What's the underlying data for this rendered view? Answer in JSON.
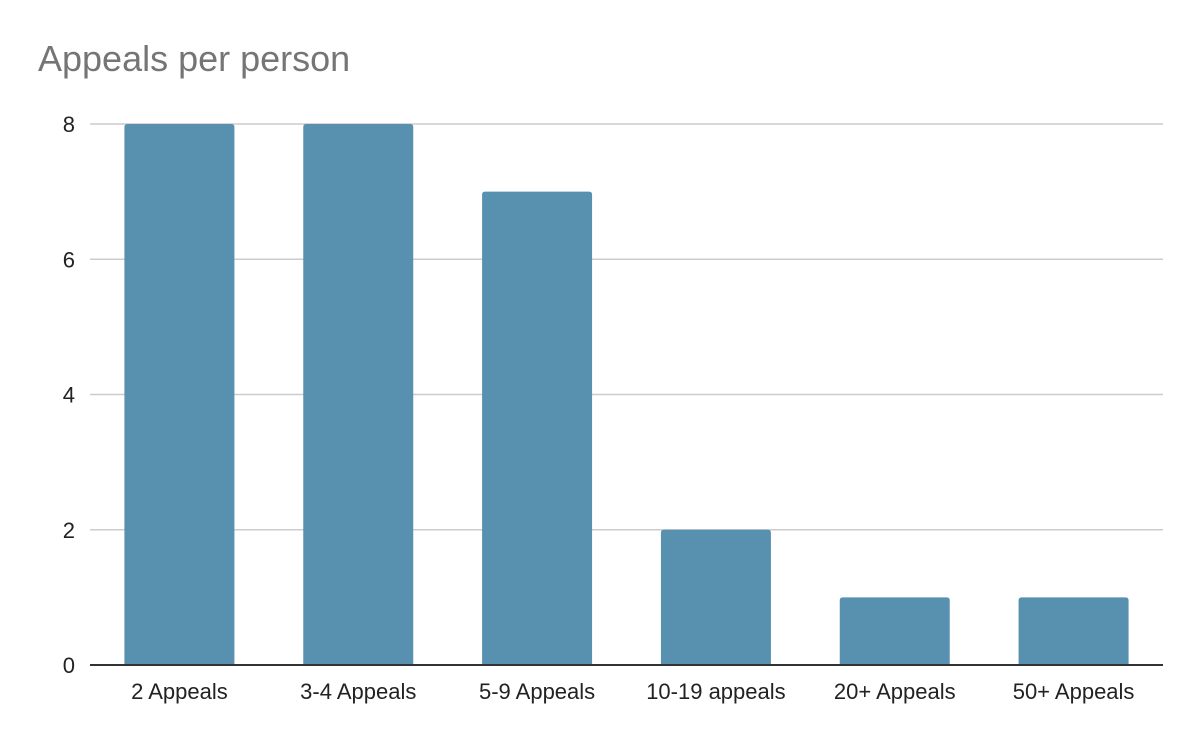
{
  "chart_data": {
    "type": "bar",
    "title": "Appeals per person",
    "xlabel": "",
    "ylabel": "",
    "categories": [
      "2 Appeals",
      "3-4 Appeals",
      "5-9 Appeals",
      "10-19 appeals",
      "20+ Appeals",
      "50+ Appeals"
    ],
    "values": [
      8,
      8,
      7,
      2,
      1,
      1
    ],
    "ylim": [
      0,
      8
    ],
    "yticks": [
      0,
      2,
      4,
      6,
      8
    ],
    "grid": true,
    "legend": "none",
    "bar_color": "#5891af"
  }
}
